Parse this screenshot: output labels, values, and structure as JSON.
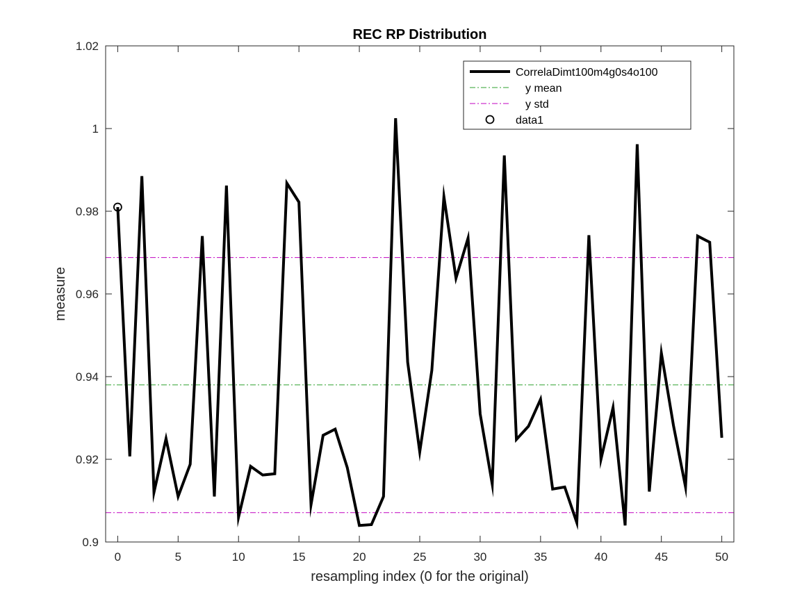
{
  "chart_data": {
    "type": "line",
    "title": "REC RP Distribution",
    "xlabel": "resampling index (0 for the original)",
    "ylabel": "measure",
    "xlim": [
      -1,
      51
    ],
    "ylim": [
      0.9,
      1.02
    ],
    "xticks": [
      0,
      5,
      10,
      15,
      20,
      25,
      30,
      35,
      40,
      45,
      50
    ],
    "xtick_labels": [
      "0",
      "5",
      "10",
      "15",
      "20",
      "25",
      "30",
      "35",
      "40",
      "45",
      "50"
    ],
    "yticks": [
      0.9,
      0.92,
      0.94,
      0.96,
      0.98,
      1.0,
      1.02
    ],
    "ytick_labels": [
      "0.9",
      "0.92",
      "0.94",
      "0.96",
      "0.98",
      "1",
      "1.02"
    ],
    "grid": false,
    "legend_position": "top-right",
    "series": [
      {
        "name": "CorrelaDimt100m4g0s4o100",
        "style": "solid",
        "color": "#000000",
        "x": [
          0,
          1,
          2,
          3,
          4,
          5,
          6,
          7,
          8,
          9,
          10,
          11,
          12,
          13,
          14,
          15,
          16,
          17,
          18,
          19,
          20,
          21,
          22,
          23,
          24,
          25,
          26,
          27,
          28,
          29,
          30,
          31,
          32,
          33,
          34,
          35,
          36,
          37,
          38,
          39,
          40,
          41,
          42,
          43,
          44,
          45,
          46,
          47,
          48,
          49,
          50
        ],
        "y": [
          0.981,
          0.9207,
          0.9885,
          0.912,
          0.925,
          0.911,
          0.9188,
          0.974,
          0.911,
          0.9862,
          0.906,
          0.9183,
          0.9162,
          0.9165,
          0.9868,
          0.9822,
          0.909,
          0.9258,
          0.9273,
          0.918,
          0.904,
          0.9042,
          0.911,
          1.0025,
          0.9435,
          0.9218,
          0.9415,
          0.9835,
          0.9638,
          0.9735,
          0.931,
          0.914,
          0.9935,
          0.9248,
          0.928,
          0.9345,
          0.9128,
          0.9133,
          0.9047,
          0.9742,
          0.92,
          0.9325,
          0.904,
          0.9962,
          0.9122,
          0.9457,
          0.9282,
          0.9133,
          0.974,
          0.9725,
          0.9252
        ]
      },
      {
        "name": "y mean",
        "style": "dashdot",
        "color": "#2ca02c",
        "y": 0.938
      },
      {
        "name": "y std",
        "style": "dashdot",
        "color": "#c000c0",
        "y": [
          0.9688,
          0.9071
        ]
      },
      {
        "name": "data1",
        "style": "marker",
        "color": "#000000",
        "x": [
          0
        ],
        "y": [
          0.981
        ]
      }
    ]
  }
}
